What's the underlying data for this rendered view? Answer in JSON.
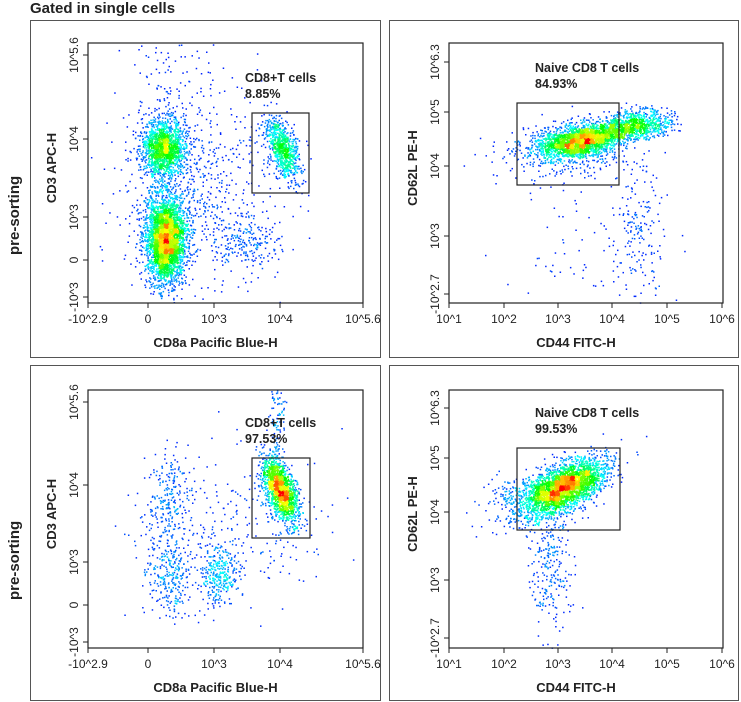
{
  "title": "Gated in single cells",
  "row_labels": [
    "pre-sorting",
    "pre-sorting"
  ],
  "chart_data": [
    {
      "type": "scatter",
      "subtype": "flow-cytometry density dot plot",
      "xlabel": "CD8a Pacific Blue-H",
      "ylabel": "CD3 APC-H",
      "x_ticks": [
        "-10^2.9",
        "0",
        "10^3",
        "10^4",
        "10^5.6"
      ],
      "y_ticks": [
        "10^5.6",
        "10^4",
        "10^3",
        "0",
        "-10^3"
      ],
      "x_scale": "biexponential",
      "y_scale": "biexponential",
      "gate": {
        "name": "CD8+T cells",
        "percent": "8.85%"
      },
      "colors": [
        "#0000ff",
        "#00ffff",
        "#00ff00",
        "#ffff00",
        "#ff0000"
      ]
    },
    {
      "type": "scatter",
      "subtype": "flow-cytometry density dot plot",
      "xlabel": "CD44 FITC-H",
      "ylabel": "CD62L PE-H",
      "x_ticks": [
        "10^1",
        "10^2",
        "10^3",
        "10^4",
        "10^5",
        "10^6"
      ],
      "y_ticks": [
        "10^6.3",
        "10^5",
        "10^4",
        "10^3",
        "-10^2.7"
      ],
      "x_scale": "log",
      "y_scale": "biexponential",
      "gate": {
        "name": "Naive CD8 T cells",
        "percent": "84.93%"
      },
      "colors": [
        "#0000ff",
        "#00ffff",
        "#00ff00",
        "#ffff00",
        "#ff0000"
      ]
    },
    {
      "type": "scatter",
      "subtype": "flow-cytometry density dot plot",
      "xlabel": "CD8a Pacific Blue-H",
      "ylabel": "CD3 APC-H",
      "x_ticks": [
        "-10^2.9",
        "0",
        "10^3",
        "10^4",
        "10^5.6"
      ],
      "y_ticks": [
        "10^5.6",
        "10^4",
        "10^3",
        "0",
        "-10^3"
      ],
      "x_scale": "biexponential",
      "y_scale": "biexponential",
      "gate": {
        "name": "CD8+T cells",
        "percent": "97.53%"
      },
      "colors": [
        "#0000ff",
        "#00ffff",
        "#00ff00",
        "#ffff00",
        "#ff0000"
      ]
    },
    {
      "type": "scatter",
      "subtype": "flow-cytometry density dot plot",
      "xlabel": "CD44 FITC-H",
      "ylabel": "CD62L PE-H",
      "x_ticks": [
        "10^1",
        "10^2",
        "10^3",
        "10^4",
        "10^5",
        "10^6"
      ],
      "y_ticks": [
        "10^6.3",
        "10^5",
        "10^4",
        "10^3",
        "-10^2.7"
      ],
      "x_scale": "log",
      "y_scale": "biexponential",
      "gate": {
        "name": "Naive CD8 T cells",
        "percent": "99.53%"
      },
      "colors": [
        "#0000ff",
        "#00ffff",
        "#00ff00",
        "#ffff00",
        "#ff0000"
      ]
    }
  ]
}
